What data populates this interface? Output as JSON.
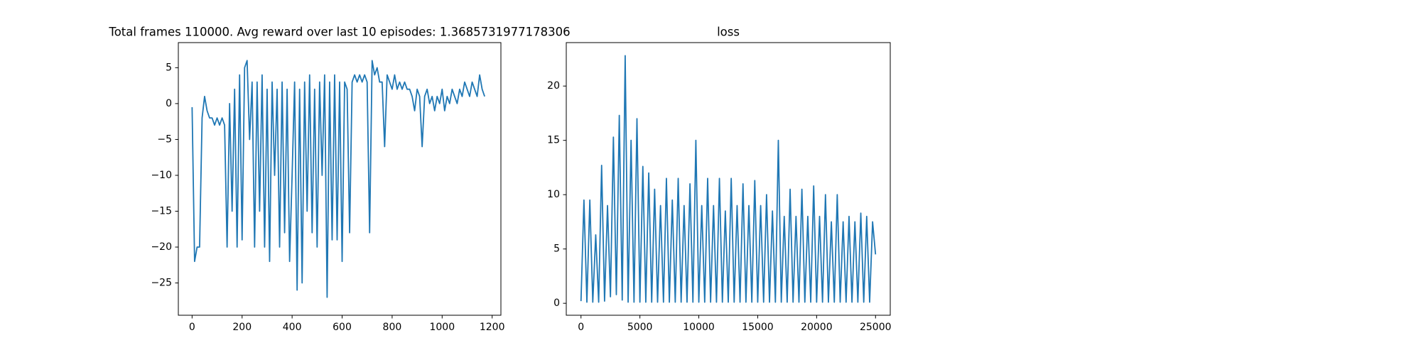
{
  "chart_data": [
    {
      "type": "line",
      "title": "Total frames 110000. Avg reward over last 10 episodes: 1.3685731977178306",
      "color": "#1f77b4",
      "xlim": [
        -55,
        1235
      ],
      "ylim": [
        -29.5,
        8.5
      ],
      "xticks": [
        0,
        200,
        400,
        600,
        800,
        1000,
        1200
      ],
      "yticks": [
        {
          "value": -25,
          "label": "−25"
        },
        {
          "value": -20,
          "label": "−20"
        },
        {
          "value": -15,
          "label": "−15"
        },
        {
          "value": -10,
          "label": "−10"
        },
        {
          "value": -5,
          "label": "−5"
        },
        0,
        5
      ],
      "x": [
        0,
        10,
        20,
        30,
        40,
        50,
        60,
        70,
        80,
        90,
        100,
        110,
        120,
        130,
        140,
        150,
        160,
        170,
        180,
        190,
        200,
        210,
        220,
        230,
        240,
        250,
        260,
        270,
        280,
        290,
        300,
        310,
        320,
        330,
        340,
        350,
        360,
        370,
        380,
        390,
        400,
        410,
        420,
        430,
        440,
        450,
        460,
        470,
        480,
        490,
        500,
        510,
        520,
        530,
        540,
        550,
        560,
        570,
        580,
        590,
        600,
        610,
        620,
        630,
        640,
        650,
        660,
        670,
        680,
        690,
        700,
        710,
        720,
        730,
        740,
        750,
        760,
        770,
        780,
        790,
        800,
        810,
        820,
        830,
        840,
        850,
        860,
        870,
        880,
        890,
        900,
        910,
        920,
        930,
        940,
        950,
        960,
        970,
        980,
        990,
        1000,
        1010,
        1020,
        1030,
        1040,
        1050,
        1060,
        1070,
        1080,
        1090,
        1100,
        1110,
        1120,
        1130,
        1140,
        1150,
        1160,
        1170
      ],
      "values": [
        -0.5,
        -22,
        -20,
        -20,
        -2,
        1,
        -1,
        -2,
        -2,
        -3,
        -2,
        -3,
        -2,
        -3,
        -20,
        0,
        -15,
        2,
        -20,
        4,
        -19,
        5,
        6,
        -5,
        3,
        -20,
        3,
        -15,
        4,
        -20,
        2,
        -22,
        3,
        -10,
        2,
        -20,
        3,
        -18,
        2,
        -22,
        -10,
        3,
        -26,
        2,
        -25,
        3,
        -15,
        4,
        -18,
        2,
        -20,
        3,
        -10,
        4,
        -27,
        3,
        -19,
        4,
        -19,
        3,
        -22,
        3,
        2,
        -18,
        3,
        4,
        3,
        4,
        3,
        4,
        3,
        -18,
        6,
        4,
        5,
        3,
        3,
        -6,
        4,
        3,
        2,
        4,
        2,
        3,
        2,
        3,
        2,
        2,
        1,
        -1,
        2,
        1,
        -6,
        1,
        2,
        0,
        1,
        -1,
        1,
        0,
        2,
        -1,
        1,
        0,
        2,
        1,
        0,
        2,
        1,
        3,
        2,
        1,
        3,
        2,
        1,
        4,
        2,
        1
      ]
    },
    {
      "type": "line",
      "title": "loss",
      "color": "#1f77b4",
      "xlim": [
        -1250,
        26250
      ],
      "ylim": [
        -1.1,
        24
      ],
      "xticks": [
        0,
        5000,
        10000,
        15000,
        20000,
        25000
      ],
      "yticks": [
        0,
        5,
        10,
        15,
        20
      ],
      "x": [
        0,
        250,
        500,
        750,
        1000,
        1250,
        1500,
        1750,
        2000,
        2250,
        2500,
        2750,
        3000,
        3250,
        3500,
        3750,
        4000,
        4250,
        4500,
        4750,
        5000,
        5250,
        5500,
        5750,
        6000,
        6250,
        6500,
        6750,
        7000,
        7250,
        7500,
        7750,
        8000,
        8250,
        8500,
        8750,
        9000,
        9250,
        9500,
        9750,
        10000,
        10250,
        10500,
        10750,
        11000,
        11250,
        11500,
        11750,
        12000,
        12250,
        12500,
        12750,
        13000,
        13250,
        13500,
        13750,
        14000,
        14250,
        14500,
        14750,
        15000,
        15250,
        15500,
        15750,
        16000,
        16250,
        16500,
        16750,
        17000,
        17250,
        17500,
        17750,
        18000,
        18250,
        18500,
        18750,
        19000,
        19250,
        19500,
        19750,
        20000,
        20250,
        20500,
        20750,
        21000,
        21250,
        21500,
        21750,
        22000,
        22250,
        22500,
        22750,
        23000,
        23250,
        23500,
        23750,
        24000,
        24250,
        24500,
        24750,
        25000
      ],
      "values": [
        0.2,
        9.5,
        0.1,
        9.5,
        0.1,
        6.3,
        0.1,
        12.7,
        0.2,
        9,
        0.6,
        15.3,
        0.8,
        17.3,
        0.3,
        22.8,
        0.1,
        15,
        0.1,
        17,
        0.1,
        12.6,
        0.1,
        12,
        0.1,
        10.5,
        0.1,
        9,
        0.1,
        11.5,
        0.1,
        9.5,
        0.1,
        11.5,
        0.1,
        9,
        0.1,
        11,
        0.1,
        15,
        0.1,
        9,
        0.1,
        11.5,
        0.1,
        9,
        0.1,
        11.5,
        0.1,
        8.5,
        0.1,
        11.5,
        0.1,
        9,
        0.1,
        11,
        0.1,
        9,
        0.1,
        11.3,
        0.1,
        9,
        0.1,
        10,
        0.1,
        8.5,
        0.1,
        15,
        0.1,
        8,
        0.1,
        10.5,
        0.1,
        8,
        0.1,
        10.5,
        0.1,
        8,
        0.1,
        10.8,
        0.1,
        8,
        0.1,
        10,
        0.1,
        7.5,
        0.1,
        10,
        0.1,
        7.5,
        0.1,
        8,
        0.1,
        7.5,
        0.1,
        8.3,
        0.1,
        8,
        0.1,
        7.5,
        4.5
      ]
    }
  ]
}
